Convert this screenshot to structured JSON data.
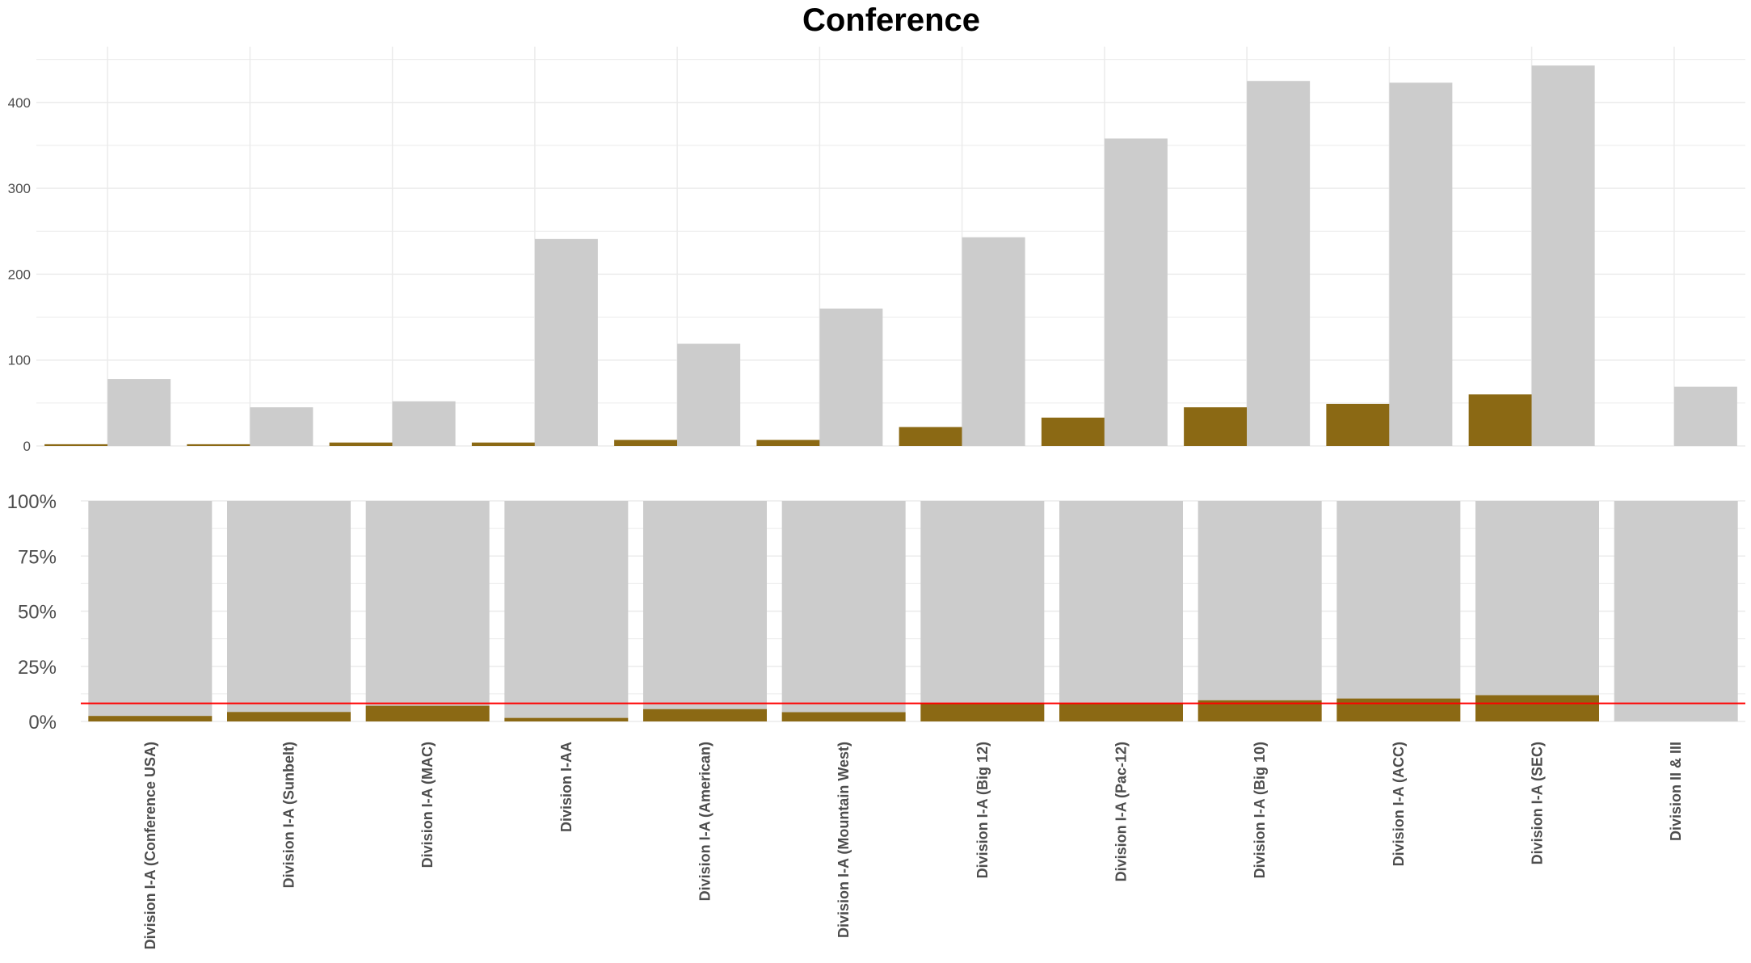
{
  "chart_data": {
    "title": "Conference",
    "type": "bar",
    "categories": [
      "Division I-A (Conference USA)",
      "Division I-A (Sunbelt)",
      "Division I-A (MAC)",
      "Division I-AA",
      "Division I-A (American)",
      "Division I-A (Mountain West)",
      "Division I-A (Big 12)",
      "Division I-A (Pac-12)",
      "Division I-A (Big 10)",
      "Division I-A (ACC)",
      "Division I-A (SEC)",
      "Division II & III"
    ],
    "colors": {
      "highlight": "#8b6914",
      "total": "#cccccc",
      "reference_line": "#ff0000",
      "grid": "#ebebeb"
    },
    "panels": [
      {
        "type": "grouped-bar",
        "yticks": [
          "0",
          "100",
          "200",
          "300",
          "400"
        ],
        "ylim": [
          0,
          465
        ],
        "series": [
          {
            "values": [
              2,
              2,
              4,
              4,
              7,
              7,
              22,
              33,
              45,
              49,
              60,
              0
            ]
          },
          {
            "values": [
              78,
              45,
              52,
              241,
              119,
              160,
              243,
              358,
              425,
              423,
              443,
              69
            ]
          }
        ]
      },
      {
        "type": "stacked-percent-bar",
        "yticks": [
          "0%",
          "25%",
          "50%",
          "75%",
          "100%"
        ],
        "ylim": [
          0,
          1
        ],
        "highlight_share": [
          0.025,
          0.043,
          0.071,
          0.016,
          0.056,
          0.042,
          0.083,
          0.084,
          0.096,
          0.104,
          0.119,
          0.0
        ],
        "reference_line": 0.082
      }
    ]
  }
}
